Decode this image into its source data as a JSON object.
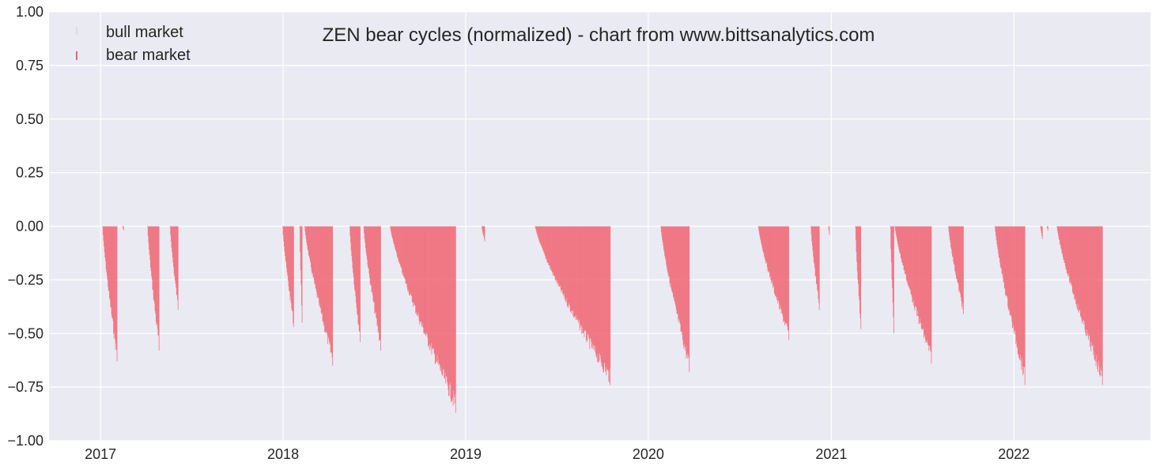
{
  "chart_data": {
    "type": "bar",
    "title": "ZEN bear cycles (normalized)  - chart from www.bittsanalytics.com",
    "xlabel": "",
    "ylabel": "",
    "xlim": [
      "2016-09-20",
      "2022-10-01"
    ],
    "ylim": [
      -1.0,
      1.0
    ],
    "x_ticks": [
      "2017",
      "2018",
      "2019",
      "2020",
      "2021",
      "2022"
    ],
    "y_ticks": [
      "1.00",
      "0.75",
      "0.50",
      "0.25",
      "0.00",
      "−0.25",
      "−0.50",
      "−0.75",
      "−1.00"
    ],
    "grid": true,
    "legend_position": "top-left",
    "series": [
      {
        "name": "bull market",
        "color": "#c8c8d0",
        "values": []
      },
      {
        "name": "bear market",
        "color": "#f0606e",
        "segments": [
          {
            "start": "2017-01-05",
            "end": "2017-02-03",
            "min": -0.63
          },
          {
            "start": "2017-02-14",
            "end": "2017-02-16",
            "min": -0.02
          },
          {
            "start": "2017-04-05",
            "end": "2017-04-28",
            "min": -0.58
          },
          {
            "start": "2017-05-20",
            "end": "2017-06-05",
            "min": -0.39
          },
          {
            "start": "2017-12-31",
            "end": "2018-01-22",
            "min": -0.47
          },
          {
            "start": "2018-02-03",
            "end": "2018-02-08",
            "min": -0.45
          },
          {
            "start": "2018-02-13",
            "end": "2018-04-10",
            "min": -0.65
          },
          {
            "start": "2018-05-14",
            "end": "2018-06-04",
            "min": -0.54
          },
          {
            "start": "2018-06-11",
            "end": "2018-07-15",
            "min": -0.58
          },
          {
            "start": "2018-08-03",
            "end": "2018-12-12",
            "min": -0.87
          },
          {
            "start": "2019-02-02",
            "end": "2019-02-08",
            "min": -0.07
          },
          {
            "start": "2019-05-20",
            "end": "2019-10-17",
            "min": -0.74
          },
          {
            "start": "2020-01-26",
            "end": "2020-03-23",
            "min": -0.68
          },
          {
            "start": "2020-08-08",
            "end": "2020-10-08",
            "min": -0.53
          },
          {
            "start": "2020-11-21",
            "end": "2020-12-08",
            "min": -0.39
          },
          {
            "start": "2020-12-26",
            "end": "2020-12-28",
            "min": -0.04
          },
          {
            "start": "2021-02-18",
            "end": "2021-03-01",
            "min": -0.48
          },
          {
            "start": "2021-04-29",
            "end": "2021-05-06",
            "min": -0.5
          },
          {
            "start": "2021-05-08",
            "end": "2021-07-20",
            "min": -0.64
          },
          {
            "start": "2021-08-23",
            "end": "2021-09-22",
            "min": -0.41
          },
          {
            "start": "2021-11-24",
            "end": "2022-01-23",
            "min": -0.74
          },
          {
            "start": "2022-02-23",
            "end": "2022-02-27",
            "min": -0.06
          },
          {
            "start": "2022-03-08",
            "end": "2022-03-10",
            "min": -0.02
          },
          {
            "start": "2022-03-28",
            "end": "2022-06-27",
            "min": -0.74
          }
        ]
      }
    ]
  }
}
